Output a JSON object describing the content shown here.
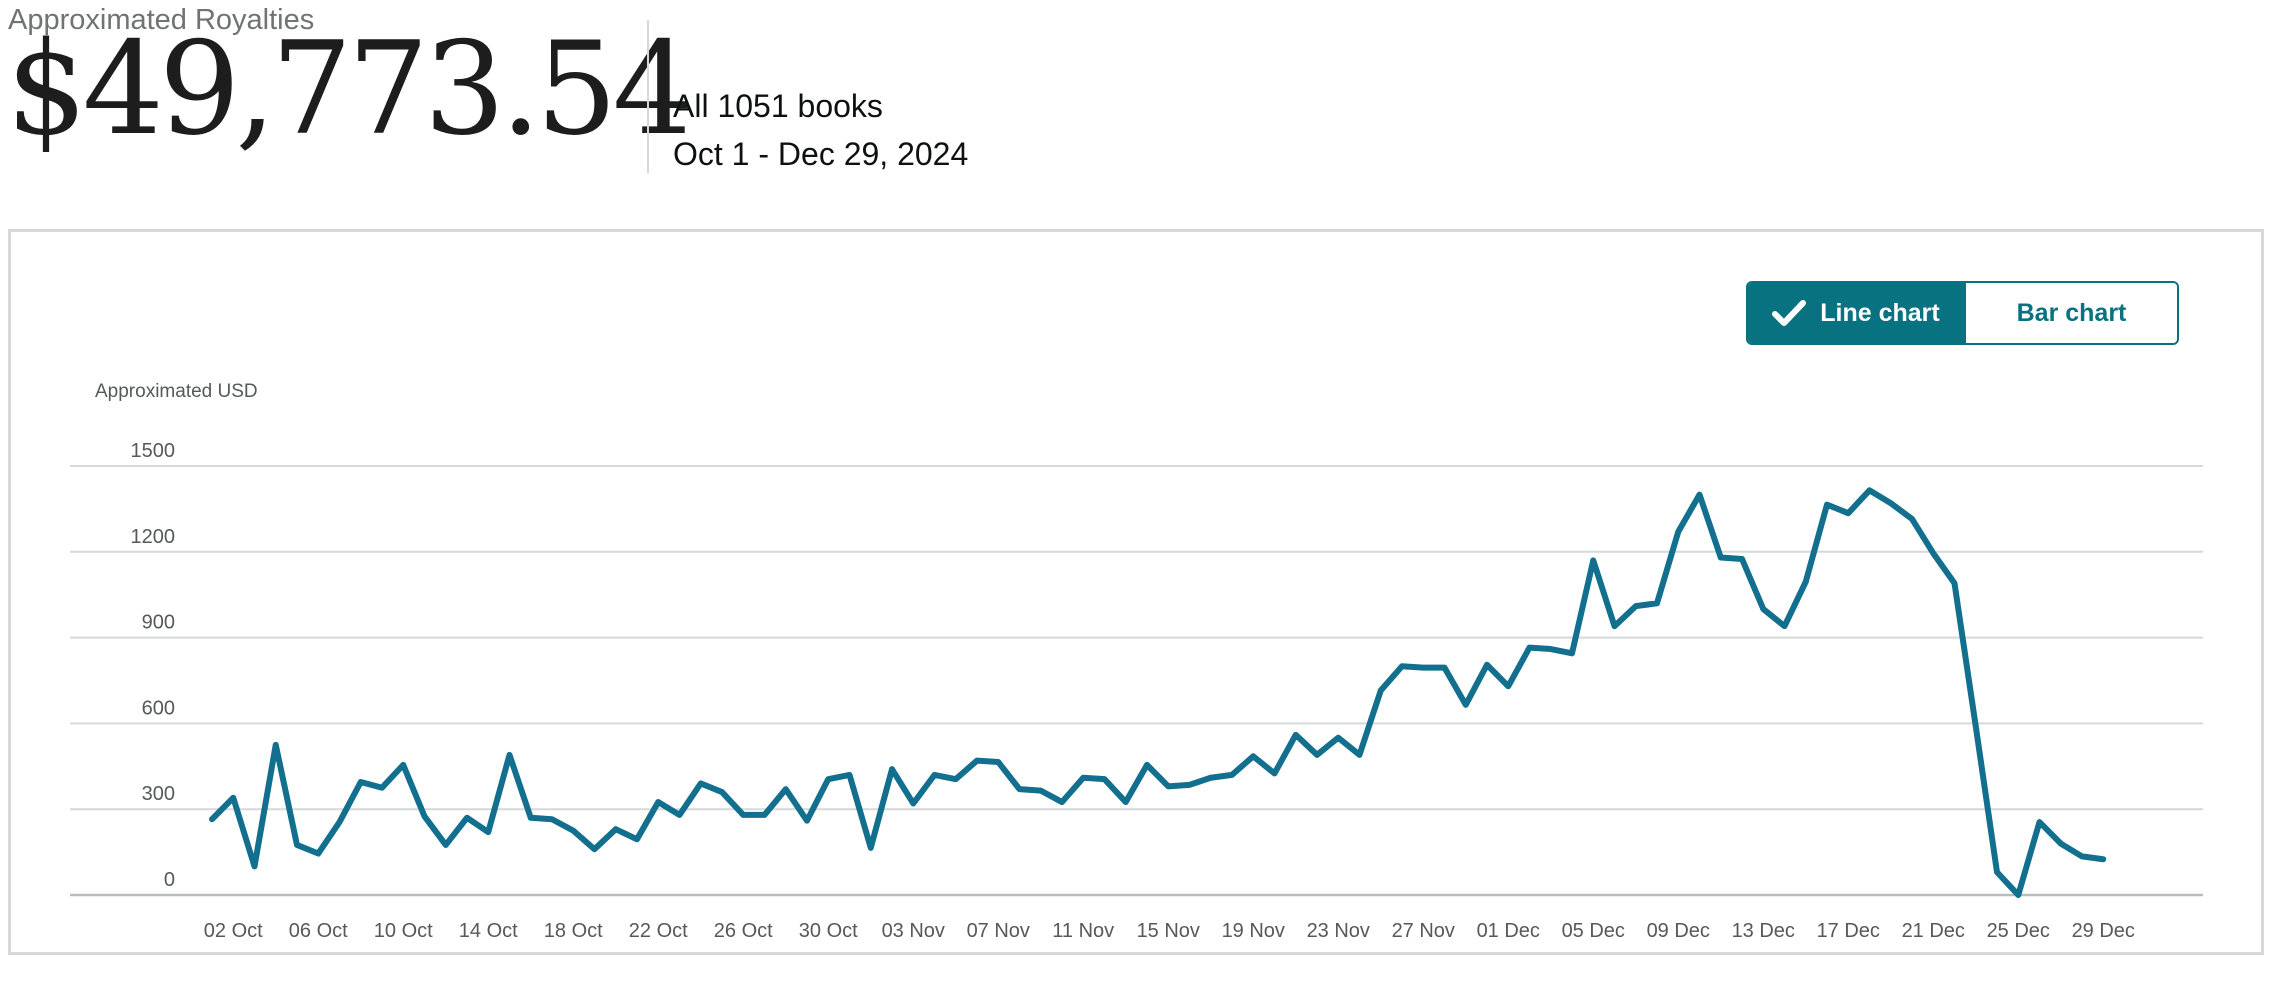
{
  "summary": {
    "label": "Approximated Royalties",
    "total": "$49,773.54",
    "books": "All 1051 books",
    "date_range": "Oct 1 - Dec 29, 2024"
  },
  "toggle": {
    "line_label": "Line chart",
    "bar_label": "Bar chart",
    "selected": "line",
    "check_icon": "check-icon"
  },
  "colors": {
    "accent": "#087281",
    "line": "#136f8e",
    "grid": "#d5d9d9"
  },
  "chart_data": {
    "type": "line",
    "ylabel": "Approximated USD",
    "ylim": [
      0,
      1500
    ],
    "yticks": [
      0,
      300,
      600,
      900,
      1200,
      1500
    ],
    "grid": true,
    "x_tick_labels": [
      "02 Oct",
      "06 Oct",
      "10 Oct",
      "14 Oct",
      "18 Oct",
      "22 Oct",
      "26 Oct",
      "30 Oct",
      "03 Nov",
      "07 Nov",
      "11 Nov",
      "15 Nov",
      "19 Nov",
      "23 Nov",
      "27 Nov",
      "01 Dec",
      "05 Dec",
      "09 Dec",
      "13 Dec",
      "17 Dec",
      "21 Dec",
      "25 Dec",
      "29 Dec"
    ],
    "x": [
      "01 Oct",
      "02 Oct",
      "03 Oct",
      "04 Oct",
      "05 Oct",
      "06 Oct",
      "07 Oct",
      "08 Oct",
      "09 Oct",
      "10 Oct",
      "11 Oct",
      "12 Oct",
      "13 Oct",
      "14 Oct",
      "15 Oct",
      "16 Oct",
      "17 Oct",
      "18 Oct",
      "19 Oct",
      "20 Oct",
      "21 Oct",
      "22 Oct",
      "23 Oct",
      "24 Oct",
      "25 Oct",
      "26 Oct",
      "27 Oct",
      "28 Oct",
      "29 Oct",
      "30 Oct",
      "31 Oct",
      "01 Nov",
      "02 Nov",
      "03 Nov",
      "04 Nov",
      "05 Nov",
      "06 Nov",
      "07 Nov",
      "08 Nov",
      "09 Nov",
      "10 Nov",
      "11 Nov",
      "12 Nov",
      "13 Nov",
      "14 Nov",
      "15 Nov",
      "16 Nov",
      "17 Nov",
      "18 Nov",
      "19 Nov",
      "20 Nov",
      "21 Nov",
      "22 Nov",
      "23 Nov",
      "24 Nov",
      "25 Nov",
      "26 Nov",
      "27 Nov",
      "28 Nov",
      "29 Nov",
      "30 Nov",
      "01 Dec",
      "02 Dec",
      "03 Dec",
      "04 Dec",
      "05 Dec",
      "06 Dec",
      "07 Dec",
      "08 Dec",
      "09 Dec",
      "10 Dec",
      "11 Dec",
      "12 Dec",
      "13 Dec",
      "14 Dec",
      "15 Dec",
      "16 Dec",
      "17 Dec",
      "18 Dec",
      "19 Dec",
      "20 Dec",
      "21 Dec",
      "22 Dec",
      "23 Dec",
      "24 Dec",
      "25 Dec",
      "26 Dec",
      "27 Dec",
      "28 Dec",
      "29 Dec"
    ],
    "values": [
      265,
      340,
      100,
      525,
      175,
      145,
      255,
      395,
      375,
      455,
      275,
      175,
      270,
      220,
      490,
      270,
      265,
      225,
      160,
      230,
      195,
      325,
      280,
      390,
      360,
      280,
      280,
      370,
      260,
      405,
      420,
      165,
      440,
      320,
      420,
      405,
      470,
      465,
      370,
      365,
      325,
      410,
      405,
      325,
      455,
      380,
      385,
      410,
      420,
      485,
      425,
      560,
      490,
      550,
      490,
      715,
      800,
      795,
      795,
      665,
      805,
      730,
      865,
      860,
      845,
      1170,
      940,
      1010,
      1020,
      1270,
      1400,
      1180,
      1175,
      1000,
      940,
      1095,
      1365,
      1335,
      1415,
      1370,
      1315,
      1195,
      1090,
      590,
      80,
      0,
      255,
      180,
      135,
      125
    ]
  }
}
